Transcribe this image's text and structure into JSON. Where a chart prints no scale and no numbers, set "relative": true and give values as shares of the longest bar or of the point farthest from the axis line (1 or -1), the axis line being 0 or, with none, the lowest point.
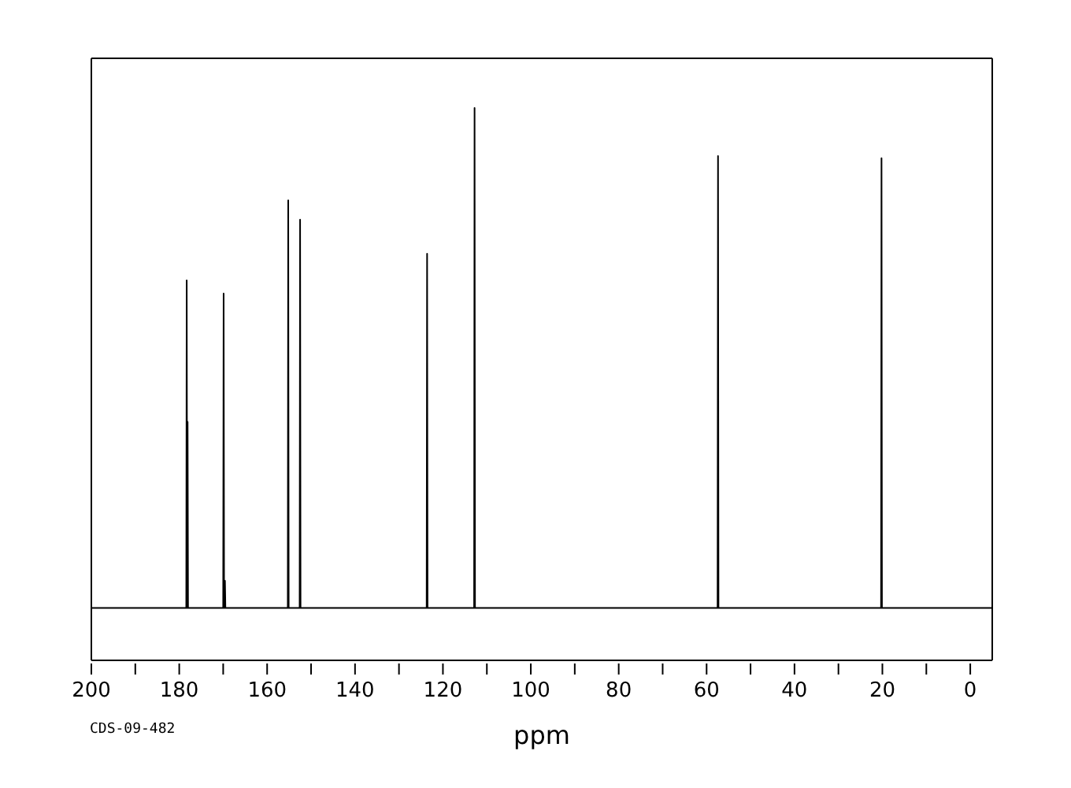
{
  "chart_data": {
    "type": "line",
    "relative": true,
    "xlabel": "ppm",
    "marker": "none",
    "line_style": "solid",
    "xlim": [
      200,
      -5
    ],
    "xticks": [
      0,
      {
        "value": 10,
        "label": null
      },
      20,
      {
        "value": 30,
        "label": null
      },
      40,
      {
        "value": 50,
        "label": null
      },
      60,
      {
        "value": 70,
        "label": null
      },
      80,
      {
        "value": 90,
        "label": null
      },
      100,
      {
        "value": 110,
        "label": null
      },
      120,
      {
        "value": 130,
        "label": null
      },
      140,
      {
        "value": 150,
        "label": null
      },
      160,
      {
        "value": 170,
        "label": null
      },
      180,
      {
        "value": 190,
        "label": null
      },
      200
    ],
    "annotations": [
      "CDS-09-482"
    ],
    "series": [
      {
        "color": "#000000",
        "x": [
          200,
          178.4,
          178.3,
          178.2,
          178.15,
          178.1,
          178.0,
          170.0,
          169.9,
          169.8,
          169.7,
          169.6,
          169.5,
          155.3,
          155.2,
          155.1,
          152.6,
          152.5,
          152.4,
          123.7,
          123.6,
          123.5,
          112.9,
          112.8,
          112.7,
          57.5,
          57.4,
          57.3,
          20.3,
          20.2,
          20.1,
          -5
        ],
        "values": [
          0.095,
          0.095,
          0.688,
          0.095,
          0.095,
          0.432,
          0.095,
          0.095,
          0.664,
          0.095,
          0.095,
          0.144,
          0.095,
          0.095,
          0.833,
          0.095,
          0.095,
          0.798,
          0.095,
          0.095,
          0.736,
          0.095,
          0.095,
          1,
          0.095,
          0.095,
          0.913,
          0.095,
          0.095,
          0.909,
          0.095,
          0.095
        ]
      }
    ]
  }
}
